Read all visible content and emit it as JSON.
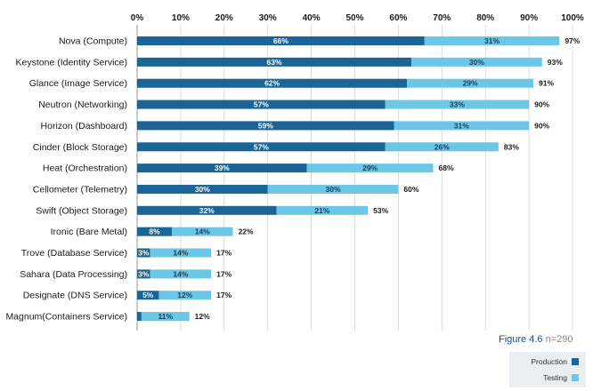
{
  "figure": {
    "label": "Figure 4.6",
    "note": "n=290"
  },
  "legend": [
    {
      "name": "Production",
      "color": "#1a6596"
    },
    {
      "name": "Testing",
      "color": "#6cc6e8"
    }
  ],
  "chart_data": {
    "type": "bar",
    "orientation": "horizontal",
    "stacked": true,
    "xlim": [
      0,
      100
    ],
    "x_ticks": [
      "0%",
      "10%",
      "20%",
      "30%",
      "40%",
      "50%",
      "60%",
      "70%",
      "80%",
      "90%",
      "100%"
    ],
    "categories": [
      "Nova (Compute)",
      "Keystone (Identity Service)",
      "Glance (Image Service)",
      "Neutron (Networking)",
      "Horizon (Dashboard)",
      "Cinder (Block Storage)",
      "Heat (Orchestration)",
      "Cellometer (Telemetry)",
      "Swift (Object Storage)",
      "Ironic (Bare Metal)",
      "Trove (Database Service)",
      "Sahara (Data Processing)",
      "Designate (DNS Service)",
      "Magnum(Containers Service)"
    ],
    "series": [
      {
        "name": "Production",
        "color": "#1a6596",
        "values": [
          66,
          63,
          62,
          57,
          59,
          57,
          39,
          30,
          32,
          8,
          3,
          3,
          5,
          1
        ],
        "labels": [
          "66%",
          "63%",
          "62%",
          "57%",
          "59%",
          "57%",
          "39%",
          "30%",
          "32%",
          "8%",
          "3%",
          "3%",
          "5%",
          ""
        ]
      },
      {
        "name": "Testing",
        "color": "#6cc6e8",
        "values": [
          31,
          30,
          29,
          33,
          31,
          26,
          29,
          30,
          21,
          14,
          14,
          14,
          12,
          11
        ],
        "labels": [
          "31%",
          "30%",
          "29%",
          "33%",
          "31%",
          "26%",
          "29%",
          "30%",
          "21%",
          "14%",
          "14%",
          "14%",
          "12%",
          "11%"
        ]
      }
    ],
    "totals": [
      "97%",
      "93%",
      "91%",
      "90%",
      "90%",
      "83%",
      "68%",
      "60%",
      "53%",
      "22%",
      "17%",
      "17%",
      "17%",
      "12%"
    ],
    "grid": true,
    "legend_position": "bottom-right"
  }
}
